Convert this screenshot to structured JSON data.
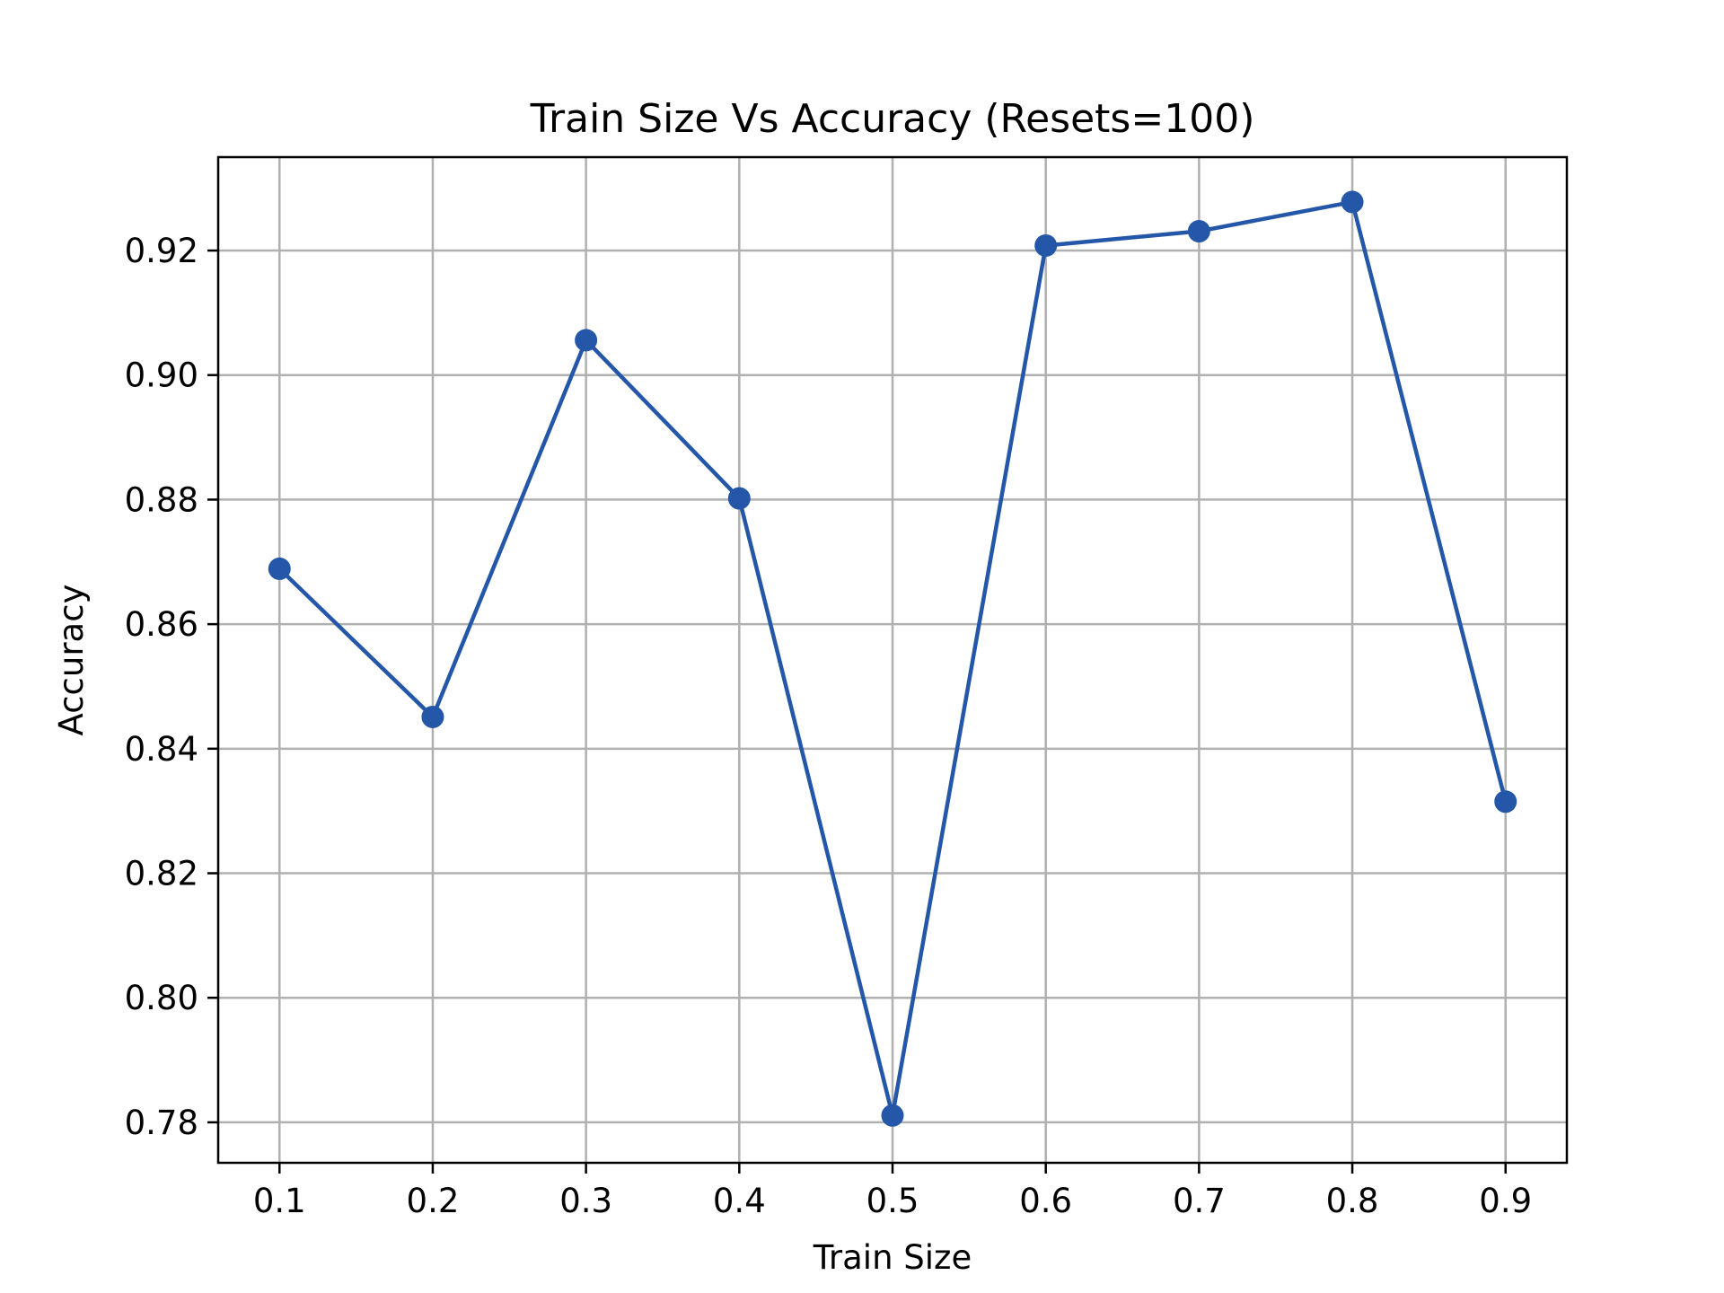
{
  "chart_data": {
    "type": "line",
    "title": "Train Size Vs Accuracy (Resets=100)",
    "xlabel": "Train Size",
    "ylabel": "Accuracy",
    "xlim": [
      0.06,
      0.94
    ],
    "ylim": [
      0.7735,
      0.935
    ],
    "grid": true,
    "xticks": [
      0.1,
      0.2,
      0.3,
      0.4,
      0.5,
      0.6,
      0.7,
      0.8,
      0.9
    ],
    "xtick_labels": [
      "0.1",
      "0.2",
      "0.3",
      "0.4",
      "0.5",
      "0.6",
      "0.7",
      "0.8",
      "0.9"
    ],
    "yticks": [
      0.78,
      0.8,
      0.82,
      0.84,
      0.86,
      0.88,
      0.9,
      0.92
    ],
    "ytick_labels": [
      "0.78",
      "0.80",
      "0.82",
      "0.84",
      "0.86",
      "0.88",
      "0.90",
      "0.92"
    ],
    "series": [
      {
        "color": "#2457a8",
        "marker": "circle",
        "x": [
          0.1,
          0.2,
          0.3,
          0.4,
          0.5,
          0.6,
          0.7,
          0.8,
          0.9
        ],
        "y": [
          0.8689,
          0.8451,
          0.9056,
          0.8802,
          0.7811,
          0.9208,
          0.9231,
          0.9278,
          0.8315
        ]
      }
    ]
  }
}
